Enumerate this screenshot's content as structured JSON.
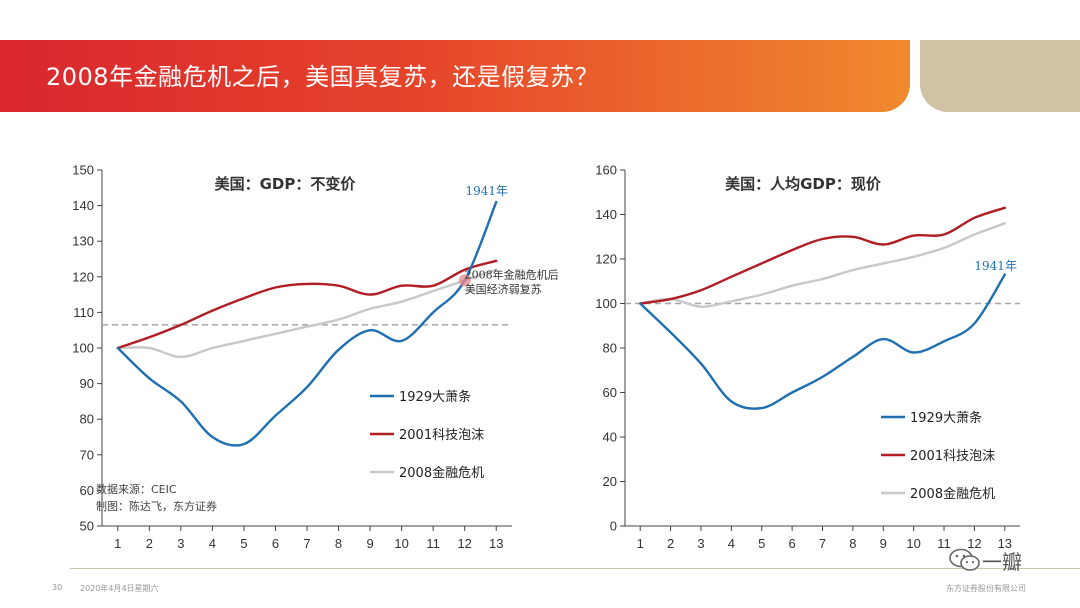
{
  "header": {
    "title": "2008年金融危机之后，美国真复苏，还是假复苏？",
    "gradient_start": "#d9272e",
    "gradient_end": "#f08a2e",
    "tab_color": "#cfc3a4"
  },
  "footer": {
    "page_number": "30",
    "date": "2020年4月4日星期六",
    "company": "东方证券股份有限公司",
    "watermark_text": "一瓣"
  },
  "colors": {
    "s1929": "#1f6fb2",
    "s2001": "#b01e23",
    "s2008": "#c8c8c8",
    "axis": "#444444",
    "refline": "#a6a6a6"
  },
  "chart_data": [
    {
      "type": "line",
      "title": "美国：GDP：不变价",
      "x": [
        1,
        2,
        3,
        4,
        5,
        6,
        7,
        8,
        9,
        10,
        11,
        12,
        13
      ],
      "ylim": [
        50,
        150
      ],
      "yticks": [
        50,
        60,
        70,
        80,
        90,
        100,
        110,
        120,
        130,
        140,
        150
      ],
      "reference_line": 106.5,
      "series": [
        {
          "name": "1929大萧条",
          "color_key": "s1929",
          "values": [
            100,
            91.5,
            85,
            75,
            73,
            81,
            89,
            99.5,
            105,
            102,
            110,
            119,
            141
          ]
        },
        {
          "name": "2001科技泡沫",
          "color_key": "s2001",
          "values": [
            100,
            103,
            106.5,
            110.5,
            114,
            117,
            118,
            117.5,
            115,
            117.5,
            117.5,
            122,
            124.5
          ]
        },
        {
          "name": "2008金融危机",
          "color_key": "s2008",
          "values": [
            100,
            100,
            97.5,
            100,
            102,
            104,
            106,
            108,
            111,
            113,
            116,
            119,
            122
          ]
        }
      ],
      "annotations": [
        {
          "text": "1941年",
          "x": 12.7,
          "y": 143
        },
        {
          "text": "2008年金融危机后",
          "x": 12.0,
          "y": 119.5
        },
        {
          "text": "美国经济弱复苏",
          "x": 12.0,
          "y": 115.5
        }
      ],
      "source_lines": [
        "数据来源：CEIC",
        "制图：陈达飞，东方证券"
      ]
    },
    {
      "type": "line",
      "title": "美国：人均GDP：现价",
      "x": [
        1,
        2,
        3,
        4,
        5,
        6,
        7,
        8,
        9,
        10,
        11,
        12,
        13
      ],
      "ylim": [
        0,
        160
      ],
      "yticks": [
        0,
        20,
        40,
        60,
        80,
        100,
        120,
        140,
        160
      ],
      "reference_line": 100,
      "series": [
        {
          "name": "1929大萧条",
          "color_key": "s1929",
          "values": [
            100,
            87,
            73,
            56,
            53,
            60,
            67,
            76,
            84,
            78,
            83,
            91,
            113
          ]
        },
        {
          "name": "2001科技泡沫",
          "color_key": "s2001",
          "values": [
            100,
            102,
            106,
            112,
            118,
            124,
            129,
            130,
            126.5,
            130.5,
            131,
            138.5,
            143
          ]
        },
        {
          "name": "2008金融危机",
          "color_key": "s2008",
          "values": [
            100,
            102,
            98.5,
            101,
            104,
            108,
            111,
            115,
            118,
            121,
            125,
            131,
            136
          ]
        }
      ],
      "annotations": [
        {
          "text": "1941年",
          "x": 12.7,
          "y": 115
        }
      ]
    }
  ]
}
